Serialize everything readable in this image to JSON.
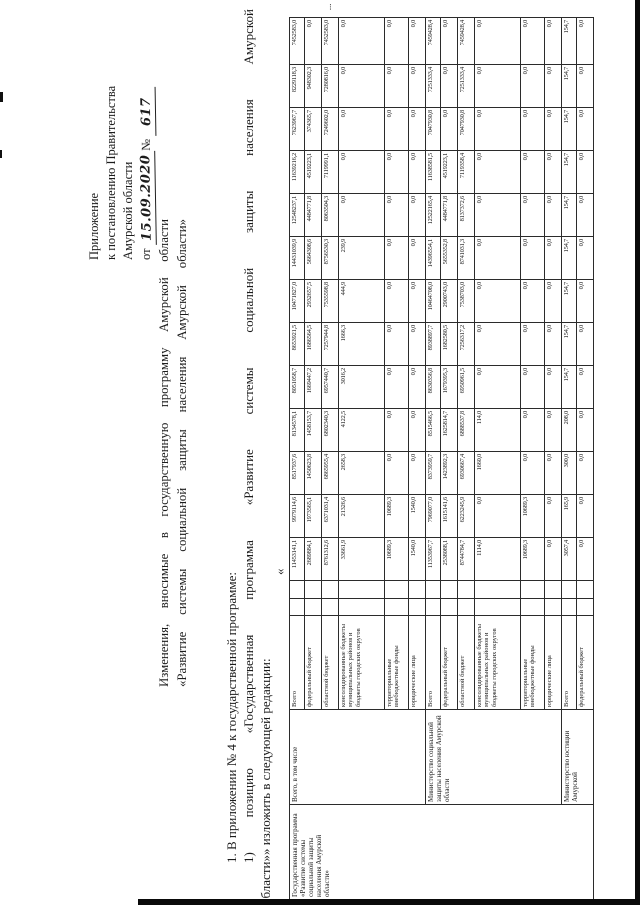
{
  "header": {
    "line1": "Приложение",
    "line2": "к постановлению Правительства",
    "line3": "Амурской области",
    "date_prefix": "от",
    "date": "15.09.2020",
    "num_sign": "№",
    "number": "617"
  },
  "title": {
    "line1": "Изменения, вносимые в государственную программу Амурской области",
    "line2": "«Развитие системы социальной защиты населения Амурской области»"
  },
  "body": {
    "p1": "1. В приложении № 4 к государственной программе:",
    "p2": "1) позицию «Государственная программа «Развитие системы социальной защиты населения Амурской",
    "p3": "области»» изложить в следующей редакции:",
    "open_quote": "«"
  },
  "table": {
    "program_label": "Государственная программа «Развитие системы социальной защиты населения Амурской области»",
    "row_labels_note": "columns: program / owner / source / 2 empty / 13 value columns",
    "groups": [
      {
        "owner": "Всего, в том числе",
        "rows": [
          {
            "label": "Всего",
            "values": [
              "11453141,1",
              "9979114,6",
              "8517937,6",
              "8134578,1",
              "8051058,7",
              "8653921,5",
              "10471827,0",
              "14431039,9",
              "12548237,1",
              "11639216,2",
              "7623967,7",
              "8229118,3",
              "7452583,0"
            ]
          },
          {
            "label": "федеральный бюджет",
            "values": [
              "2689884,1",
              "1973565,1",
              "1450623,8",
              "1458153,7",
              "1669447,2",
              "1686564,5",
              "2932657,5",
              "5664308,6",
              "4484771,8",
              "4519223,1",
              "374365,7",
              "948302,3",
              "0,0"
            ]
          },
          {
            "label": "областной бюджет",
            "values": [
              "8761312,6",
              "6371031,4",
              "6865955,4",
              "6802340,3",
              "6957440,7",
              "7257944,8",
              "7535598,8",
              "8756530,3",
              "8063504,3",
              "7119991,1",
              "7249602,0",
              "7280816,0",
              "7452583,0"
            ]
          },
          {
            "label": "консолидирован­ные бюджеты муниципальных районов и бюджеты городских округов",
            "values": [
              "33661,9",
              "21326,6",
              "2658,3",
              "4122,5",
              "3016,2",
              "1666,3",
              "444,9",
              "239,9",
              "0,0",
              "0,0",
              "0,0",
              "0,0",
              "0,0"
            ]
          },
          {
            "label": "территориальные внебюджетные фонды",
            "values": [
              "10689,3",
              "10689,3",
              "0,0",
              "0,0",
              "0,0",
              "0,0",
              "0,0",
              "0,0",
              "0,0",
              "0,0",
              "0,0",
              "0,0",
              "0,0"
            ]
          },
          {
            "label": "юридические лица",
            "values": [
              "1540,0",
              "1540,0",
              "0,0",
              "0,0",
              "0,0",
              "0,0",
              "0,0",
              "0,0",
              "0,0",
              "0,0",
              "0,0",
              "0,0",
              "0,0"
            ]
          }
        ]
      },
      {
        "owner": "Министерство социальной защиты населения Амурской области",
        "rows": [
          {
            "label": "Всего",
            "values": [
              "11353967,7",
              "7969077,0",
              "8373959,7",
              "8515466,5",
              "8630356,8",
              "8938897,7",
              "10464708,0",
              "14396554,1",
              "12522165,4",
              "11638581,5",
              "7047930,8",
              "7251333,4",
              "7459428,4"
            ]
          },
          {
            "label": "федеральный бюджет",
            "values": [
              "2538088,1",
              "1615141,6",
              "1423892,3",
              "1625814,7",
              "1679395,3",
              "1682580,5",
              "2900743,0",
              "5655352,8",
              "4484771,8",
              "4519223,1",
              "0,0",
              "0,0",
              "0,0"
            ]
          },
          {
            "label": "областной бюджет",
            "values": [
              "8744784,7",
              "6223245,9",
              "6930667,4",
              "6888537,8",
              "6950961,5",
              "7256317,2",
              "7538703,0",
              "8741031,3",
              "8137372,6",
              "7119358,4",
              "7047930,8",
              "7251333,4",
              "7459428,4"
            ]
          },
          {
            "label": "консолидирован­ные бюджеты муниципальных районов и бюджеты городских округов",
            "values": [
              "1114,0",
              "0,0",
              "1660,0",
              "114,0",
              "0,0",
              "0,0",
              "0,0",
              "0,0",
              "0,0",
              "0,0",
              "0,0",
              "0,0",
              "0,0"
            ]
          },
          {
            "label": "территориальные внебюджетные фонды",
            "values": [
              "10689,3",
              "10689,3",
              "0,0",
              "0,0",
              "0,0",
              "0,0",
              "0,0",
              "0,0",
              "0,0",
              "0,0",
              "0,0",
              "0,0",
              "0,0"
            ]
          },
          {
            "label": "юридические лица",
            "values": [
              "0,0",
              "0,0",
              "0,0",
              "0,0",
              "0,0",
              "0,0",
              "0,0",
              "0,0",
              "0,0",
              "0,0",
              "0,0",
              "0,0",
              "0,0"
            ]
          }
        ]
      },
      {
        "owner": "Министерство юстиции Амурской",
        "rows": [
          {
            "label": "Всего",
            "values": [
              "3057,4",
              "165,9",
              "300,0",
              "208,0",
              "154,7",
              "154,7",
              "154,7",
              "154,7",
              "154,7",
              "154,7",
              "154,7",
              "154,7",
              "154,7"
            ]
          },
          {
            "label": "федеральный бюджет",
            "values": [
              "0,0",
              "0,0",
              "0,0",
              "0,0",
              "0,0",
              "0,0",
              "0,0",
              "0,0",
              "0,0",
              "0,0",
              "0,0",
              "0,0",
              "0,0"
            ]
          }
        ]
      }
    ]
  },
  "artifacts": {
    "dots": "⁝"
  }
}
